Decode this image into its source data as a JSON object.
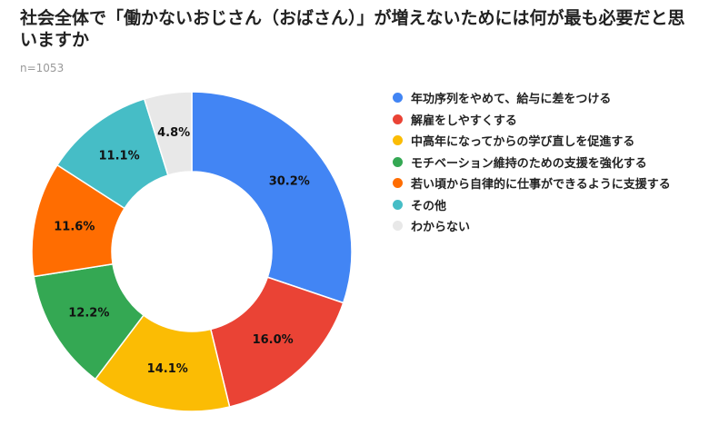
{
  "chart_data": {
    "type": "pie",
    "title": "社会全体で「働かないおじさん（おばさん）」が増えないためには何が最も必要だと思いますか",
    "subtitle": "n=1053",
    "donut": true,
    "legend_position": "right",
    "slices": [
      {
        "label": "年功序列をやめて、給与に差をつける",
        "value": 30.2,
        "display": "30.2%",
        "color": "#4285F4"
      },
      {
        "label": "解雇をしやすくする",
        "value": 16.0,
        "display": "16.0%",
        "color": "#EA4335"
      },
      {
        "label": "中高年になってからの学び直しを促進する",
        "value": 14.1,
        "display": "14.1%",
        "color": "#FBBC04"
      },
      {
        "label": "モチベーション維持のための支援を強化する",
        "value": 12.2,
        "display": "12.2%",
        "color": "#34A853"
      },
      {
        "label": "若い頃から自律的に仕事ができるように支援する",
        "value": 11.6,
        "display": "11.6%",
        "color": "#FF6D01"
      },
      {
        "label": "その他",
        "value": 11.1,
        "display": "11.1%",
        "color": "#46BDC6"
      },
      {
        "label": "わからない",
        "value": 4.8,
        "display": "4.8%",
        "color": "#E8E8E8"
      }
    ]
  }
}
